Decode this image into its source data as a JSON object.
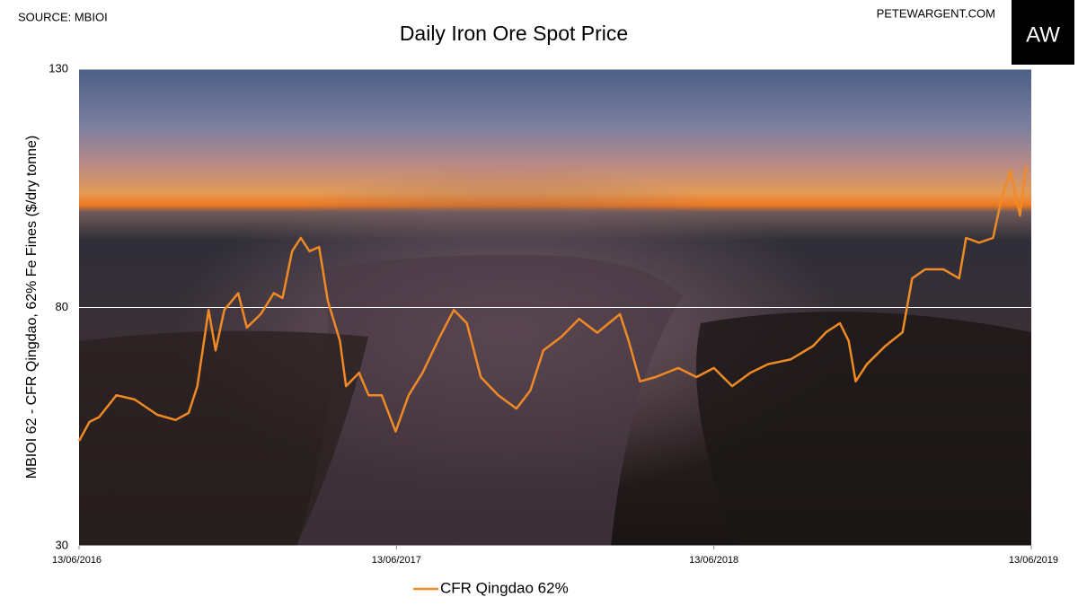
{
  "chart_data": {
    "type": "line",
    "title": "Daily Iron Ore Spot Price",
    "source": "SOURCE: MBIOI",
    "website": "PETEWARGENT.COM",
    "logo": "AW",
    "y_label": "MBIOI 62 - CFR Qingdao, 62% Fe Fines ($/dry tonne)",
    "x": [
      "13/06/2016",
      "25/06/2016",
      "06/07/2016",
      "26/07/2016",
      "16/08/2016",
      "11/09/2016",
      "02/10/2016",
      "17/10/2016",
      "27/10/2016",
      "09/11/2016",
      "17/11/2016",
      "27/11/2016",
      "13/12/2016",
      "23/12/2016",
      "08/01/2017",
      "23/01/2017",
      "02/02/2017",
      "13/02/2017",
      "23/02/2017",
      "05/03/2017",
      "16/03/2017",
      "26/03/2017",
      "09/04/2017",
      "16/04/2017",
      "01/05/2017",
      "12/05/2017",
      "27/05/2017",
      "12/06/2017",
      "27/06/2017",
      "13/07/2017",
      "02/08/2017",
      "18/08/2017",
      "02/09/2017",
      "18/09/2017",
      "08/10/2017",
      "29/10/2017",
      "14/11/2017",
      "29/11/2017",
      "20/12/2017",
      "09/01/2018",
      "30/01/2018",
      "25/02/2018",
      "07/03/2018",
      "20/03/2018",
      "07/04/2018",
      "03/05/2018",
      "24/05/2018",
      "13/06/2018",
      "04/07/2018",
      "25/07/2018",
      "14/08/2018",
      "09/09/2018",
      "05/10/2018",
      "20/10/2018",
      "05/11/2018",
      "15/11/2018",
      "23/11/2018",
      "06/12/2018",
      "27/12/2018",
      "16/01/2019",
      "27/01/2019",
      "11/02/2019",
      "04/03/2019",
      "22/03/2019",
      "30/03/2019",
      "14/04/2019",
      "30/04/2019",
      "10/05/2019",
      "20/05/2019",
      "31/05/2019",
      "07/06/2019"
    ],
    "series": [
      {
        "name": "CFR Qingdao 62%",
        "color": "#f08a24",
        "values": [
          52,
          56,
          57,
          61.6,
          60.7,
          57.5,
          56.4,
          57.9,
          63.5,
          79.5,
          71,
          79.5,
          83,
          75.8,
          78.6,
          83,
          82,
          91.8,
          94.6,
          91.8,
          92.7,
          81.4,
          73,
          63.5,
          66.3,
          61.6,
          61.6,
          54,
          61.6,
          66.3,
          73.9,
          79.5,
          76.7,
          65.4,
          61.6,
          58.8,
          62.6,
          71,
          73.9,
          77.6,
          74.7,
          78.6,
          73,
          64.5,
          65.4,
          67.3,
          65.4,
          67.3,
          63.5,
          66.3,
          68.1,
          69.1,
          71.9,
          74.8,
          76.7,
          73,
          64.5,
          68.1,
          71.9,
          74.8,
          86.1,
          88,
          88,
          86.1,
          94.6,
          93.6,
          94.6,
          103,
          108.7,
          99.3,
          109.7
        ]
      }
    ],
    "xlim": [
      "13/06/2016",
      "13/06/2019"
    ],
    "xticks": [
      "13/06/2016",
      "13/06/2017",
      "13/06/2018",
      "13/06/2019"
    ],
    "ylim": [
      30,
      130
    ],
    "yticks": [
      30,
      80,
      130
    ],
    "grid": true
  }
}
